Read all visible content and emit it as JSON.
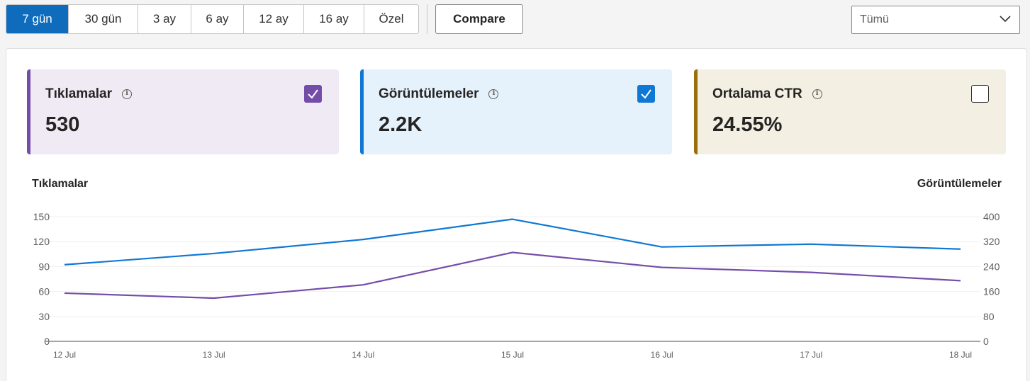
{
  "range_tabs": [
    {
      "label": "7 gün",
      "active": true
    },
    {
      "label": "30 gün",
      "active": false
    },
    {
      "label": "3 ay",
      "active": false
    },
    {
      "label": "6 ay",
      "active": false
    },
    {
      "label": "12 ay",
      "active": false
    },
    {
      "label": "16 ay",
      "active": false
    },
    {
      "label": "Özel",
      "active": false
    }
  ],
  "compare_label": "Compare",
  "filter": {
    "selected": "Tümü"
  },
  "metrics": [
    {
      "name": "Tıklamalar",
      "value": "530",
      "checked": true,
      "color": "#744da9",
      "bg": "#f0eaf5"
    },
    {
      "name": "Görüntülemeler",
      "value": "2.2K",
      "checked": true,
      "color": "#0f78d4",
      "bg": "#e5f1fb"
    },
    {
      "name": "Ortalama CTR",
      "value": "24.55%",
      "checked": false,
      "color": "#986f0b",
      "bg": "#f3efe3"
    }
  ],
  "chart_data": {
    "type": "line",
    "categories": [
      "12 Jul",
      "13 Jul",
      "14 Jul",
      "15 Jul",
      "16 Jul",
      "17 Jul",
      "18 Jul"
    ],
    "left_axis": {
      "title": "Tıklamalar",
      "ylim": [
        0,
        150
      ],
      "ticks": [
        "150",
        "120",
        "90",
        "60",
        "30",
        "0"
      ]
    },
    "right_axis": {
      "title": "Görüntülemeler",
      "ylim": [
        0,
        400
      ],
      "ticks": [
        "400",
        "320",
        "240",
        "160",
        "80",
        "0"
      ]
    },
    "series": [
      {
        "name": "Görüntülemeler",
        "axis": "right",
        "color": "#0f78d4",
        "values": [
          246,
          282,
          327,
          392,
          303,
          312,
          296
        ]
      },
      {
        "name": "Tıklamalar",
        "axis": "left",
        "color": "#744da9",
        "values": [
          58,
          52,
          68,
          107,
          89,
          83,
          73
        ]
      }
    ],
    "grid": true,
    "legend": "none"
  }
}
